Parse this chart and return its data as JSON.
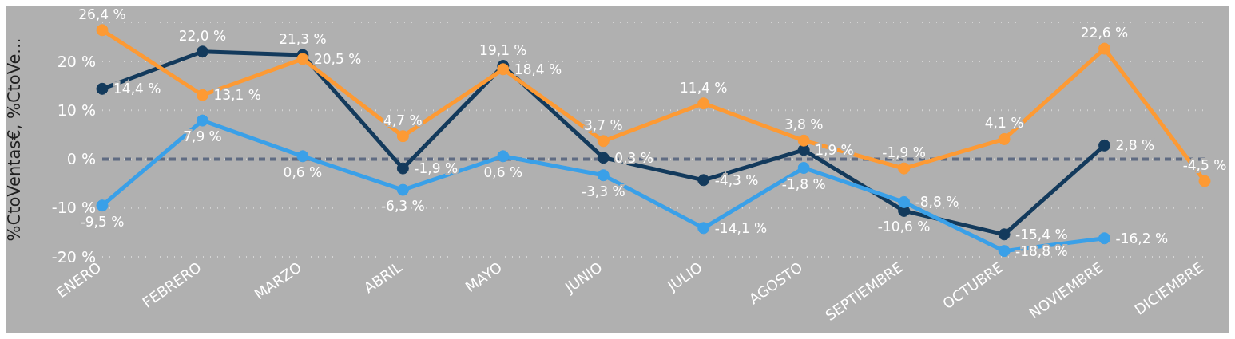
{
  "chart_data": {
    "type": "line",
    "ylabel": "%CtoVentas€, %CtoVe...",
    "categories": [
      "ENERO",
      "FEBRERO",
      "MARZO",
      "ABRIL",
      "MAYO",
      "JUNIO",
      "JULIO",
      "AGOSTO",
      "SEPTIEMBRE",
      "OCTUBRE",
      "NOVIEMBRE",
      "DICIEMBRE"
    ],
    "series": [
      {
        "color": "#133a5c",
        "values": [
          14.4,
          22.0,
          21.3,
          -1.9,
          19.1,
          0.3,
          -4.3,
          1.9,
          -10.6,
          -15.4,
          2.8,
          null
        ],
        "value_labels": [
          "14,4 %",
          "22,0 %",
          "21,3 %",
          "-1,9 %",
          "19,1 %",
          "0,3 %",
          "-4,3 %",
          "1,9 %",
          "-10,6 %",
          "-15,4 %",
          "2,8 %",
          null
        ]
      },
      {
        "color": "#fd9a34",
        "values": [
          26.4,
          13.1,
          20.5,
          4.7,
          18.4,
          3.7,
          11.4,
          3.8,
          -1.9,
          4.1,
          22.6,
          -4.5
        ],
        "value_labels": [
          "26,4 %",
          "13,1 %",
          "20,5 %",
          "4,7 %",
          "18,4 %",
          "3,7 %",
          "11,4 %",
          "3,8 %",
          "-1,9 %",
          "4,1 %",
          "22,6 %",
          "-4,5 %"
        ]
      },
      {
        "color": "#3aa0e8",
        "values": [
          -9.5,
          7.9,
          0.6,
          -6.3,
          0.6,
          -3.3,
          -14.1,
          -1.8,
          -8.8,
          -18.8,
          -16.2,
          null
        ],
        "value_labels": [
          "-9,5 %",
          "7,9 %",
          "0,6 %",
          "-6,3 %",
          "0,6 %",
          "-3,3 %",
          "-14,1 %",
          "-1,8 %",
          "-8,8 %",
          "-18,8 %",
          "-16,2 %",
          null
        ]
      }
    ],
    "ylim": [
      -20,
      28
    ],
    "yticks": [
      {
        "value": -20,
        "label": "-20 %"
      },
      {
        "value": -10,
        "label": "-10 %"
      },
      {
        "value": 0,
        "label": "0 %"
      },
      {
        "value": 10,
        "label": "10 %"
      },
      {
        "value": 20,
        "label": "20 %"
      }
    ],
    "grid": "y",
    "marker": "circle",
    "line_style": "solid",
    "ref_lines": [
      {
        "axis": "y",
        "value": 0,
        "color": "#5f6b82",
        "line_style": "dashed"
      }
    ]
  }
}
